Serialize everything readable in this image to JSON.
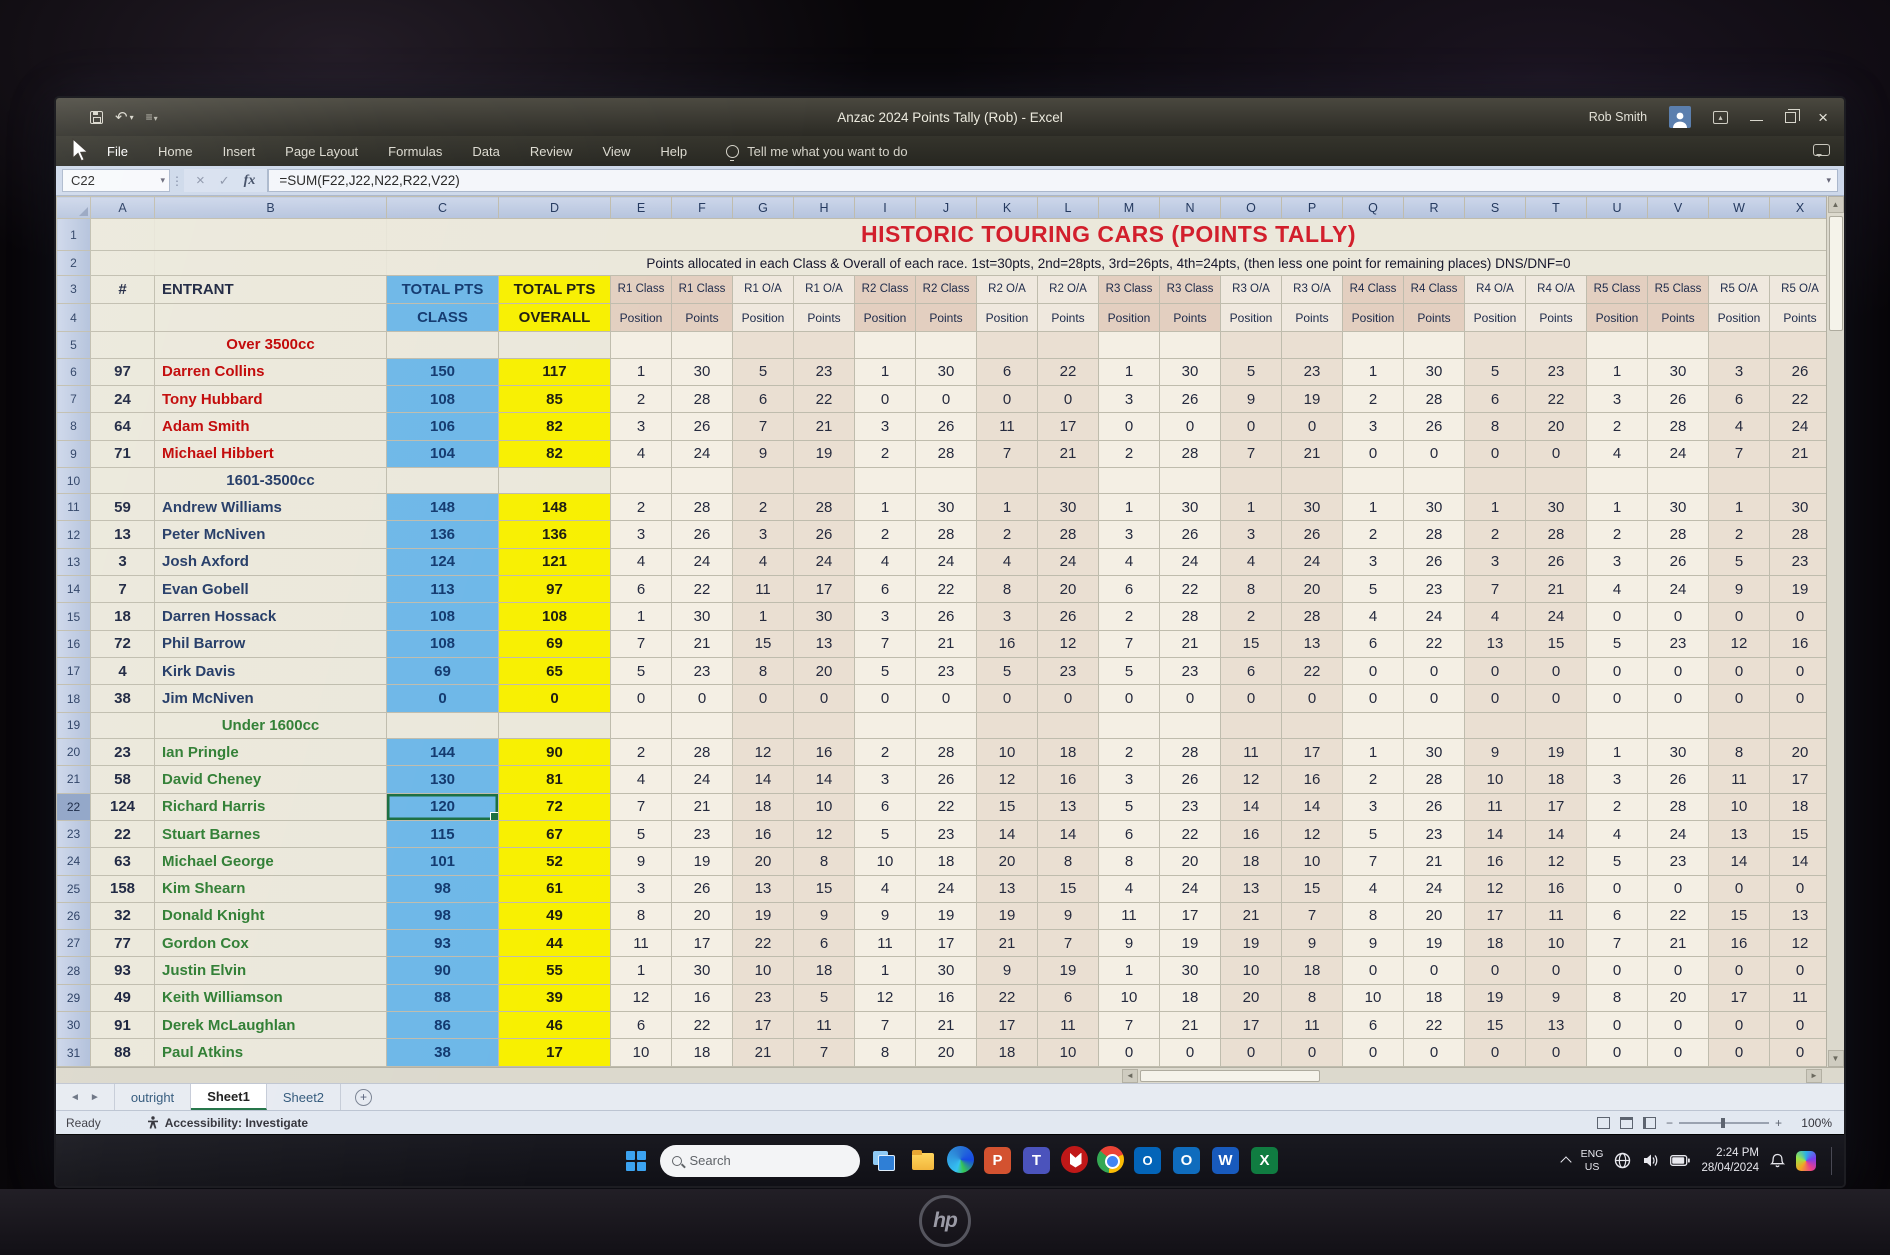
{
  "window": {
    "title": "Anzac 2024 Points Tally (Rob)  -  Excel",
    "user": "Rob Smith"
  },
  "ribbon": {
    "tabs": [
      "File",
      "Home",
      "Insert",
      "Page Layout",
      "Formulas",
      "Data",
      "Review",
      "View",
      "Help"
    ],
    "tell_me": "Tell me what you want to do"
  },
  "formula_bar": {
    "name_box": "C22",
    "fx_label": "fx",
    "formula": "=SUM(F22,J22,N22,R22,V22)"
  },
  "sheet": {
    "col_letters": [
      "A",
      "B",
      "C",
      "D",
      "E",
      "F",
      "G",
      "H",
      "I",
      "J",
      "K",
      "L",
      "M",
      "N",
      "O",
      "P",
      "Q",
      "R",
      "S",
      "T",
      "U",
      "V",
      "W",
      "X"
    ],
    "selected": {
      "cell": "C22",
      "column": "C",
      "row": 22
    },
    "title": "HISTORIC TOURING CARS  (POINTS TALLY)",
    "subtitle": "Points allocated in each Class & Overall of each race. 1st=30pts, 2nd=28pts, 3rd=26pts, 4th=24pts, (then less one point for remaining places) DNS/DNF=0",
    "headers": {
      "num": "#",
      "entrant": "ENTRANT",
      "total_pts": "TOTAL PTS",
      "class_sub": "CLASS",
      "overall_sub": "OVERALL",
      "race_headers": [
        "R1 Class",
        "R1 O/A",
        "R2 Class",
        "R2 O/A",
        "R3 Class",
        "R3 O/A",
        "R4 Class",
        "R4 O/A",
        "R5 Class",
        "R5 O/A"
      ],
      "sub_headers": [
        "Position",
        "Points"
      ]
    },
    "groups": [
      {
        "label": "Over 3500cc",
        "theme": "red",
        "label_row": 5,
        "rows": [
          {
            "r": 6,
            "num": "97",
            "name": "Darren Collins",
            "cls": "150",
            "ovr": "117",
            "res": [
              1,
              30,
              5,
              23,
              1,
              30,
              6,
              22,
              1,
              30,
              5,
              23,
              1,
              30,
              5,
              23,
              1,
              30,
              3,
              26
            ]
          },
          {
            "r": 7,
            "num": "24",
            "name": "Tony Hubbard",
            "cls": "108",
            "ovr": "85",
            "res": [
              2,
              28,
              6,
              22,
              0,
              0,
              0,
              0,
              3,
              26,
              9,
              19,
              2,
              28,
              6,
              22,
              3,
              26,
              6,
              22
            ]
          },
          {
            "r": 8,
            "num": "64",
            "name": "Adam Smith",
            "cls": "106",
            "ovr": "82",
            "res": [
              3,
              26,
              7,
              21,
              3,
              26,
              11,
              17,
              0,
              0,
              0,
              0,
              3,
              26,
              8,
              20,
              2,
              28,
              4,
              24
            ]
          },
          {
            "r": 9,
            "num": "71",
            "name": "Michael Hibbert",
            "cls": "104",
            "ovr": "82",
            "res": [
              4,
              24,
              9,
              19,
              2,
              28,
              7,
              21,
              2,
              28,
              7,
              21,
              0,
              0,
              0,
              0,
              4,
              24,
              7,
              21
            ]
          }
        ]
      },
      {
        "label": "1601-3500cc",
        "theme": "navy",
        "label_row": 10,
        "rows": [
          {
            "r": 11,
            "num": "59",
            "name": "Andrew Williams",
            "cls": "148",
            "ovr": "148",
            "res": [
              2,
              28,
              2,
              28,
              1,
              30,
              1,
              30,
              1,
              30,
              1,
              30,
              1,
              30,
              1,
              30,
              1,
              30,
              1,
              30
            ]
          },
          {
            "r": 12,
            "num": "13",
            "name": "Peter McNiven",
            "cls": "136",
            "ovr": "136",
            "res": [
              3,
              26,
              3,
              26,
              2,
              28,
              2,
              28,
              3,
              26,
              3,
              26,
              2,
              28,
              2,
              28,
              2,
              28,
              2,
              28
            ]
          },
          {
            "r": 13,
            "num": "3",
            "name": "Josh Axford",
            "cls": "124",
            "ovr": "121",
            "res": [
              4,
              24,
              4,
              24,
              4,
              24,
              4,
              24,
              4,
              24,
              4,
              24,
              3,
              26,
              3,
              26,
              3,
              26,
              5,
              23
            ]
          },
          {
            "r": 14,
            "num": "7",
            "name": "Evan Gobell",
            "cls": "113",
            "ovr": "97",
            "res": [
              6,
              22,
              11,
              17,
              6,
              22,
              8,
              20,
              6,
              22,
              8,
              20,
              5,
              23,
              7,
              21,
              4,
              24,
              9,
              19
            ]
          },
          {
            "r": 15,
            "num": "18",
            "name": "Darren Hossack",
            "cls": "108",
            "ovr": "108",
            "res": [
              1,
              30,
              1,
              30,
              3,
              26,
              3,
              26,
              2,
              28,
              2,
              28,
              4,
              24,
              4,
              24,
              0,
              0,
              0,
              0
            ]
          },
          {
            "r": 16,
            "num": "72",
            "name": "Phil Barrow",
            "cls": "108",
            "ovr": "69",
            "res": [
              7,
              21,
              15,
              13,
              7,
              21,
              16,
              12,
              7,
              21,
              15,
              13,
              6,
              22,
              13,
              15,
              5,
              23,
              12,
              16
            ]
          },
          {
            "r": 17,
            "num": "4",
            "name": "Kirk Davis",
            "cls": "69",
            "ovr": "65",
            "res": [
              5,
              23,
              8,
              20,
              5,
              23,
              5,
              23,
              5,
              23,
              6,
              22,
              0,
              0,
              0,
              0,
              0,
              0,
              0,
              0
            ]
          },
          {
            "r": 18,
            "num": "38",
            "name": "Jim McNiven",
            "cls": "0",
            "ovr": "0",
            "res": [
              0,
              0,
              0,
              0,
              0,
              0,
              0,
              0,
              0,
              0,
              0,
              0,
              0,
              0,
              0,
              0,
              0,
              0,
              0,
              0
            ]
          }
        ]
      },
      {
        "label": "Under 1600cc",
        "theme": "green",
        "label_row": 19,
        "rows": [
          {
            "r": 20,
            "num": "23",
            "name": "Ian Pringle",
            "cls": "144",
            "ovr": "90",
            "res": [
              2,
              28,
              12,
              16,
              2,
              28,
              10,
              18,
              2,
              28,
              11,
              17,
              1,
              30,
              9,
              19,
              1,
              30,
              8,
              20
            ]
          },
          {
            "r": 21,
            "num": "58",
            "name": "David Cheney",
            "cls": "130",
            "ovr": "81",
            "res": [
              4,
              24,
              14,
              14,
              3,
              26,
              12,
              16,
              3,
              26,
              12,
              16,
              2,
              28,
              10,
              18,
              3,
              26,
              11,
              17
            ]
          },
          {
            "r": 22,
            "num": "124",
            "name": "Richard Harris",
            "cls": "120",
            "ovr": "72",
            "res": [
              7,
              21,
              18,
              10,
              6,
              22,
              15,
              13,
              5,
              23,
              14,
              14,
              3,
              26,
              11,
              17,
              2,
              28,
              10,
              18
            ]
          },
          {
            "r": 23,
            "num": "22",
            "name": "Stuart Barnes",
            "cls": "115",
            "ovr": "67",
            "res": [
              5,
              23,
              16,
              12,
              5,
              23,
              14,
              14,
              6,
              22,
              16,
              12,
              5,
              23,
              14,
              14,
              4,
              24,
              13,
              15
            ]
          },
          {
            "r": 24,
            "num": "63",
            "name": "Michael George",
            "cls": "101",
            "ovr": "52",
            "res": [
              9,
              19,
              20,
              8,
              10,
              18,
              20,
              8,
              8,
              20,
              18,
              10,
              7,
              21,
              16,
              12,
              5,
              23,
              14,
              14
            ]
          },
          {
            "r": 25,
            "num": "158",
            "name": "Kim Shearn",
            "cls": "98",
            "ovr": "61",
            "res": [
              3,
              26,
              13,
              15,
              4,
              24,
              13,
              15,
              4,
              24,
              13,
              15,
              4,
              24,
              12,
              16,
              0,
              0,
              0,
              0
            ]
          },
          {
            "r": 26,
            "num": "32",
            "name": "Donald Knight",
            "cls": "98",
            "ovr": "49",
            "res": [
              8,
              20,
              19,
              9,
              9,
              19,
              19,
              9,
              11,
              17,
              21,
              7,
              8,
              20,
              17,
              11,
              6,
              22,
              15,
              13
            ]
          },
          {
            "r": 27,
            "num": "77",
            "name": "Gordon Cox",
            "cls": "93",
            "ovr": "44",
            "res": [
              11,
              17,
              22,
              6,
              11,
              17,
              21,
              7,
              9,
              19,
              19,
              9,
              9,
              19,
              18,
              10,
              7,
              21,
              16,
              12
            ]
          },
          {
            "r": 28,
            "num": "93",
            "name": "Justin Elvin",
            "cls": "90",
            "ovr": "55",
            "res": [
              1,
              30,
              10,
              18,
              1,
              30,
              9,
              19,
              1,
              30,
              10,
              18,
              0,
              0,
              0,
              0,
              0,
              0,
              0,
              0
            ]
          },
          {
            "r": 29,
            "num": "49",
            "name": "Keith Williamson",
            "cls": "88",
            "ovr": "39",
            "res": [
              12,
              16,
              23,
              5,
              12,
              16,
              22,
              6,
              10,
              18,
              20,
              8,
              10,
              18,
              19,
              9,
              8,
              20,
              17,
              11
            ]
          },
          {
            "r": 30,
            "num": "91",
            "name": "Derek McLaughlan",
            "cls": "86",
            "ovr": "46",
            "res": [
              6,
              22,
              17,
              11,
              7,
              21,
              17,
              11,
              7,
              21,
              17,
              11,
              6,
              22,
              15,
              13,
              0,
              0,
              0,
              0
            ]
          },
          {
            "r": 31,
            "num": "88",
            "name": "Paul Atkins",
            "cls": "38",
            "ovr": "17",
            "res": [
              10,
              18,
              21,
              7,
              8,
              20,
              18,
              10,
              0,
              0,
              0,
              0,
              0,
              0,
              0,
              0,
              0,
              0,
              0,
              0
            ]
          }
        ]
      }
    ]
  },
  "sheet_tabs": {
    "items": [
      "outright",
      "Sheet1",
      "Sheet2"
    ],
    "active_index": 1
  },
  "status_bar": {
    "ready": "Ready",
    "accessibility": "Accessibility: Investigate",
    "zoom_level": "100%"
  },
  "taskbar": {
    "search_placeholder": "Search",
    "apps": [
      "task-view",
      "file-explorer",
      "edge",
      "powerpoint",
      "teams",
      "mcafee",
      "chrome",
      "onedrive",
      "outlook",
      "word",
      "excel"
    ],
    "app_letters": {
      "powerpoint": "P",
      "teams": "T",
      "onedrive": "O",
      "outlook": "O",
      "word": "W",
      "excel": "X"
    },
    "tray": {
      "lang_top": "ENG",
      "lang_bottom": "US",
      "time": "2:24 PM",
      "date": "28/04/2024"
    }
  },
  "device": {
    "brand": "hp"
  },
  "colors": {
    "class_fill": "#6db7e8",
    "overall_fill": "#f8f000",
    "title_red": "#d21f2c",
    "navy": "#203864",
    "green": "#2e7d32",
    "selection_green": "#1a6e41"
  }
}
